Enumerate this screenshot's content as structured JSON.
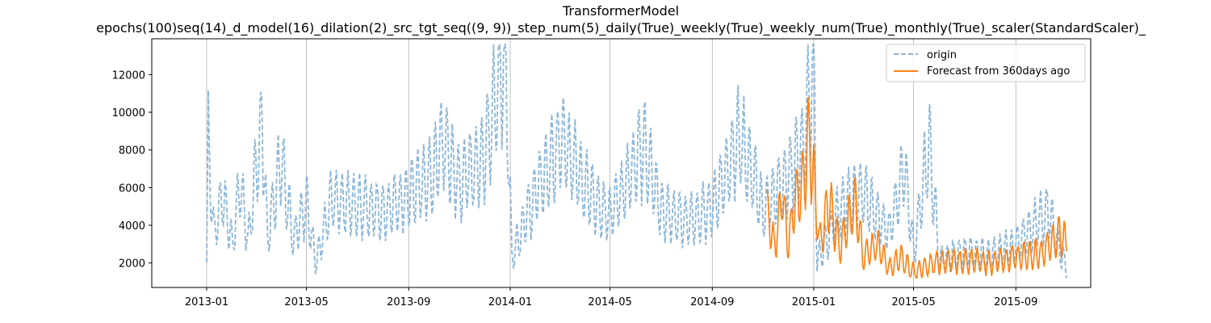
{
  "chart_data": {
    "type": "line",
    "title": "TransformerModel",
    "subtitle": "epochs(100)seq(14)_d_model(16)_dilation(2)_src_tgt_seq((9, 9))_step_num(5)_daily(True)_weekly(True)_weekly_num(True)_monthly(True)_scaler(StandardScaler)_",
    "xlabel": "",
    "ylabel": "",
    "x_range": [
      "2012-10-27",
      "2015-11-30"
    ],
    "ylim": [
      700,
      13900
    ],
    "x_ticks": [
      "2013-01",
      "2013-05",
      "2013-09",
      "2014-01",
      "2014-05",
      "2014-09",
      "2015-01",
      "2015-05",
      "2015-09"
    ],
    "y_ticks": [
      2000,
      4000,
      6000,
      8000,
      10000,
      12000
    ],
    "grid": "vertical lines at x ticks",
    "legend_position": "top-right",
    "series": [
      {
        "name": "origin",
        "style": "dashed",
        "color": "#8cb6d8",
        "description_points": [
          [
            "2013-01-01",
            2000
          ],
          [
            "2013-01-03",
            8200
          ],
          [
            "2013-01-10",
            3500
          ],
          [
            "2013-01-20",
            5600
          ],
          [
            "2013-02-01",
            3000
          ],
          [
            "2013-02-10",
            6200
          ],
          [
            "2013-02-20",
            3200
          ],
          [
            "2013-03-01",
            6800
          ],
          [
            "2013-03-09",
            9450
          ],
          [
            "2013-03-15",
            3400
          ],
          [
            "2013-04-01",
            7500
          ],
          [
            "2013-04-15",
            3200
          ],
          [
            "2013-05-01",
            5200
          ],
          [
            "2013-05-12",
            2000
          ],
          [
            "2013-06-01",
            5500
          ],
          [
            "2013-07-01",
            5000
          ],
          [
            "2013-08-01",
            4800
          ],
          [
            "2013-09-01",
            5600
          ],
          [
            "2013-10-01",
            6800
          ],
          [
            "2013-10-12",
            8400
          ],
          [
            "2013-11-01",
            6200
          ],
          [
            "2013-12-01",
            7700
          ],
          [
            "2013-12-26",
            13350
          ],
          [
            "2014-01-03",
            2300
          ],
          [
            "2014-02-01",
            5800
          ],
          [
            "2014-03-05",
            8450
          ],
          [
            "2014-04-01",
            6000
          ],
          [
            "2014-05-01",
            4500
          ],
          [
            "2014-06-10",
            8150
          ],
          [
            "2014-07-01",
            4800
          ],
          [
            "2014-08-01",
            4200
          ],
          [
            "2014-09-01",
            4900
          ],
          [
            "2014-10-05",
            8750
          ],
          [
            "2014-11-01",
            4800
          ],
          [
            "2014-12-01",
            6500
          ],
          [
            "2014-12-20",
            8300
          ],
          [
            "2015-01-01",
            13250
          ],
          [
            "2015-01-05",
            2100
          ],
          [
            "2015-02-01",
            4800
          ],
          [
            "2015-03-01",
            5800
          ],
          [
            "2015-04-01",
            3500
          ],
          [
            "2015-04-20",
            7050
          ],
          [
            "2015-05-01",
            2500
          ],
          [
            "2015-05-20",
            8500
          ],
          [
            "2015-06-01",
            2200
          ],
          [
            "2015-07-01",
            2600
          ],
          [
            "2015-08-01",
            2400
          ],
          [
            "2015-09-01",
            3000
          ],
          [
            "2015-10-10",
            4750
          ],
          [
            "2015-11-01",
            1600
          ]
        ]
      },
      {
        "name": "Forecast from 360days ago",
        "style": "solid",
        "color": "#ff7f0e",
        "description_points": [
          [
            "2014-11-06",
            4600
          ],
          [
            "2014-11-15",
            2800
          ],
          [
            "2014-11-24",
            5700
          ],
          [
            "2014-12-01",
            3000
          ],
          [
            "2014-12-10",
            5300
          ],
          [
            "2014-12-20",
            6300
          ],
          [
            "2014-12-25",
            8600
          ],
          [
            "2015-01-01",
            6600
          ],
          [
            "2015-01-08",
            3100
          ],
          [
            "2015-01-20",
            5300
          ],
          [
            "2015-02-01",
            2800
          ],
          [
            "2015-02-20",
            5300
          ],
          [
            "2015-03-01",
            2300
          ],
          [
            "2015-03-20",
            3000
          ],
          [
            "2015-04-01",
            1700
          ],
          [
            "2015-04-15",
            2300
          ],
          [
            "2015-05-01",
            1500
          ],
          [
            "2015-05-15",
            1800
          ],
          [
            "2015-06-01",
            2100
          ],
          [
            "2015-07-01",
            2100
          ],
          [
            "2015-08-01",
            2000
          ],
          [
            "2015-09-01",
            2300
          ],
          [
            "2015-10-01",
            2500
          ],
          [
            "2015-10-25",
            3450
          ],
          [
            "2015-11-01",
            3000
          ]
        ]
      }
    ]
  },
  "colors": {
    "origin": "#8cb6d8",
    "forecast": "#ff7f0e",
    "axis": "#000000",
    "grid": "#b0b0b0"
  }
}
